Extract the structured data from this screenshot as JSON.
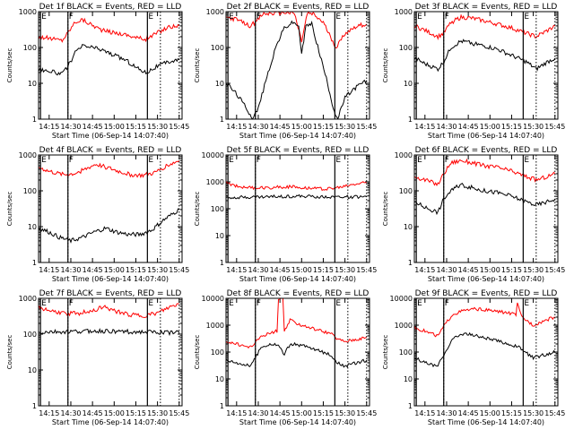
{
  "chart_data": [
    {
      "type": "line",
      "title": "Det 1f BLACK = Events, RED = LLD",
      "xlabel": "Start Time (06-Sep-14 14:07:40)",
      "ylabel": "Counts/sec",
      "yscale": "log",
      "ylim": [
        1,
        1000
      ],
      "xlim": [
        "14:07:40",
        "15:47:00"
      ],
      "x_ticks": [
        "14:15",
        "14:30",
        "14:45",
        "15:00",
        "15:15",
        "15:30",
        "15:45"
      ],
      "y_ticks": [
        "1",
        "10",
        "100",
        "1000"
      ],
      "markers": [
        {
          "time": "14:09",
          "label": "E"
        },
        {
          "time": "14:28",
          "label": "F"
        },
        {
          "time": "15:23",
          "label": "E"
        }
      ],
      "dotted_lines": [
        "14:28",
        "15:32",
        "15:45"
      ],
      "series": [
        {
          "color": "#ff0000",
          "x": [
            "14:08",
            "14:15",
            "14:24",
            "14:28",
            "14:33",
            "14:38",
            "14:45",
            "14:52",
            "15:00",
            "15:08",
            "15:15",
            "15:22",
            "15:30",
            "15:38",
            "15:45"
          ],
          "y": [
            200,
            180,
            160,
            260,
            520,
            600,
            420,
            300,
            260,
            230,
            190,
            170,
            260,
            380,
            400
          ]
        },
        {
          "color": "#000000",
          "x": [
            "14:08",
            "14:15",
            "14:24",
            "14:28",
            "14:33",
            "14:38",
            "14:45",
            "14:52",
            "15:00",
            "15:08",
            "15:15",
            "15:22",
            "15:30",
            "15:38",
            "15:45"
          ],
          "y": [
            25,
            22,
            18,
            30,
            70,
            110,
            100,
            85,
            60,
            45,
            28,
            20,
            30,
            40,
            45
          ]
        }
      ]
    },
    {
      "type": "line",
      "title": "Det 2f BLACK = Events, RED = LLD",
      "xlabel": "Start Time (06-Sep-14 14:07:40)",
      "ylabel": "Counts/sec",
      "yscale": "log",
      "ylim": [
        1,
        1000
      ],
      "xlim": [
        "14:07:40",
        "15:47:00"
      ],
      "x_ticks": [
        "14:15",
        "14:30",
        "14:45",
        "15:00",
        "15:15",
        "15:30",
        "15:45"
      ],
      "y_ticks": [
        "1",
        "10",
        "100",
        "1000"
      ],
      "markers": [
        {
          "time": "14:09",
          "label": "E"
        },
        {
          "time": "14:28",
          "label": "F"
        },
        {
          "time": "15:23",
          "label": "E"
        }
      ],
      "dotted_lines": [
        "14:28",
        "15:32",
        "15:45"
      ],
      "series": [
        {
          "color": "#ff0000",
          "x": [
            "14:08",
            "14:15",
            "14:24",
            "14:28",
            "14:33",
            "14:40",
            "14:48",
            "14:55",
            "15:00",
            "15:04",
            "15:08",
            "15:15",
            "15:20",
            "15:24",
            "15:30",
            "15:38",
            "15:45"
          ],
          "y": [
            700,
            600,
            400,
            500,
            850,
            900,
            950,
            900,
            150,
            900,
            850,
            500,
            200,
            100,
            250,
            400,
            450
          ]
        },
        {
          "color": "#000000",
          "x": [
            "14:08",
            "14:15",
            "14:22",
            "14:26",
            "14:30",
            "14:36",
            "14:42",
            "14:48",
            "14:54",
            "14:58",
            "15:00",
            "15:03",
            "15:07",
            "15:12",
            "15:18",
            "15:22",
            "15:25",
            "15:30",
            "15:38",
            "15:45"
          ],
          "y": [
            10,
            5,
            2,
            1,
            2,
            15,
            100,
            350,
            500,
            400,
            60,
            400,
            450,
            80,
            10,
            2,
            1,
            4,
            8,
            12
          ]
        }
      ]
    },
    {
      "type": "line",
      "title": "Det 3f BLACK = Events, RED = LLD",
      "xlabel": "Start Time (06-Sep-14 14:07:40)",
      "ylabel": "Counts/sec",
      "yscale": "log",
      "ylim": [
        1,
        1000
      ],
      "xlim": [
        "14:07:40",
        "15:47:00"
      ],
      "x_ticks": [
        "14:15",
        "14:30",
        "14:45",
        "15:00",
        "15:15",
        "15:30",
        "15:45"
      ],
      "y_ticks": [
        "1",
        "10",
        "100",
        "1000"
      ],
      "markers": [
        {
          "time": "14:09",
          "label": "E"
        },
        {
          "time": "14:28",
          "label": "F"
        },
        {
          "time": "15:23",
          "label": "E"
        }
      ],
      "dotted_lines": [
        "14:28",
        "15:32",
        "15:45"
      ],
      "series": [
        {
          "color": "#ff0000",
          "x": [
            "14:08",
            "14:15",
            "14:24",
            "14:28",
            "14:33",
            "14:40",
            "14:48",
            "14:56",
            "15:05",
            "15:15",
            "15:25",
            "15:32",
            "15:40",
            "15:45"
          ],
          "y": [
            400,
            300,
            200,
            250,
            500,
            700,
            650,
            550,
            450,
            350,
            250,
            200,
            300,
            400
          ]
        },
        {
          "color": "#000000",
          "x": [
            "14:08",
            "14:15",
            "14:24",
            "14:28",
            "14:33",
            "14:40",
            "14:48",
            "14:56",
            "15:05",
            "15:15",
            "15:25",
            "15:32",
            "15:40",
            "15:45"
          ],
          "y": [
            50,
            35,
            25,
            40,
            100,
            150,
            130,
            110,
            90,
            60,
            40,
            25,
            40,
            50
          ]
        }
      ]
    },
    {
      "type": "line",
      "title": "Det 4f BLACK = Events, RED = LLD",
      "xlabel": "Start Time (06-Sep-14 14:07:40)",
      "ylabel": "Counts/sec",
      "yscale": "log",
      "ylim": [
        1,
        1000
      ],
      "xlim": [
        "14:07:40",
        "15:47:00"
      ],
      "x_ticks": [
        "14:15",
        "14:30",
        "14:45",
        "15:00",
        "15:15",
        "15:30",
        "15:45"
      ],
      "y_ticks": [
        "1",
        "10",
        "100",
        "1000"
      ],
      "markers": [
        {
          "time": "14:09",
          "label": "E"
        },
        {
          "time": "14:28",
          "label": "F"
        },
        {
          "time": "15:23",
          "label": "E"
        }
      ],
      "dotted_lines": [
        "14:28",
        "15:32",
        "15:45"
      ],
      "series": [
        {
          "color": "#ff0000",
          "x": [
            "14:08",
            "14:15",
            "14:25",
            "14:32",
            "14:40",
            "14:47",
            "14:55",
            "15:03",
            "15:12",
            "15:20",
            "15:28",
            "15:36",
            "15:45"
          ],
          "y": [
            450,
            350,
            280,
            300,
            400,
            550,
            450,
            350,
            280,
            270,
            320,
            500,
            700
          ]
        },
        {
          "color": "#000000",
          "x": [
            "14:08",
            "14:15",
            "14:22",
            "14:30",
            "14:38",
            "14:46",
            "14:54",
            "15:02",
            "15:10",
            "15:18",
            "15:26",
            "15:34",
            "15:45"
          ],
          "y": [
            9,
            7,
            5,
            4,
            5,
            7,
            9,
            7,
            6,
            6,
            8,
            15,
            30
          ]
        }
      ]
    },
    {
      "type": "line",
      "title": "Det 5f BLACK = Events, RED = LLD",
      "xlabel": "Start Time (06-Sep-14 14:07:40)",
      "ylabel": "Counts/sec",
      "yscale": "log",
      "ylim": [
        1,
        10000
      ],
      "xlim": [
        "14:07:40",
        "15:47:00"
      ],
      "x_ticks": [
        "14:15",
        "14:30",
        "14:45",
        "15:00",
        "15:15",
        "15:30",
        "15:45"
      ],
      "y_ticks": [
        "1",
        "10",
        "100",
        "1000",
        "10000"
      ],
      "markers": [
        {
          "time": "14:09",
          "label": "E"
        },
        {
          "time": "14:28",
          "label": "F"
        },
        {
          "time": "15:23",
          "label": "E"
        }
      ],
      "dotted_lines": [
        "14:28",
        "15:32",
        "15:45"
      ],
      "series": [
        {
          "color": "#ff0000",
          "x": [
            "14:08",
            "14:15",
            "14:25",
            "14:35",
            "14:45",
            "14:55",
            "15:05",
            "15:15",
            "15:25",
            "15:35",
            "15:45"
          ],
          "y": [
            900,
            700,
            600,
            600,
            650,
            650,
            600,
            550,
            600,
            800,
            950
          ]
        },
        {
          "color": "#000000",
          "x": [
            "14:08",
            "14:15",
            "14:25",
            "14:35",
            "14:45",
            "14:55",
            "15:05",
            "15:15",
            "15:25",
            "15:35",
            "15:45"
          ],
          "y": [
            270,
            270,
            270,
            275,
            285,
            290,
            285,
            280,
            275,
            275,
            275
          ]
        }
      ]
    },
    {
      "type": "line",
      "title": "Det 6f BLACK = Events, RED = LLD",
      "xlabel": "Start Time (06-Sep-14 14:07:40)",
      "ylabel": "Counts/sec",
      "yscale": "log",
      "ylim": [
        1,
        1000
      ],
      "xlim": [
        "14:07:40",
        "15:47:00"
      ],
      "x_ticks": [
        "14:15",
        "14:30",
        "14:45",
        "15:00",
        "15:15",
        "15:30",
        "15:45"
      ],
      "y_ticks": [
        "1",
        "10",
        "100",
        "1000"
      ],
      "markers": [
        {
          "time": "14:09",
          "label": "E"
        },
        {
          "time": "14:28",
          "label": "F"
        },
        {
          "time": "15:23",
          "label": "E"
        }
      ],
      "dotted_lines": [
        "14:28",
        "15:32",
        "15:45"
      ],
      "series": [
        {
          "color": "#ff0000",
          "x": [
            "14:08",
            "14:15",
            "14:24",
            "14:28",
            "14:33",
            "14:40",
            "14:48",
            "14:56",
            "15:05",
            "15:15",
            "15:25",
            "15:32",
            "15:40",
            "15:45"
          ],
          "y": [
            250,
            200,
            150,
            300,
            600,
            700,
            600,
            500,
            450,
            350,
            250,
            200,
            250,
            300
          ]
        },
        {
          "color": "#000000",
          "x": [
            "14:08",
            "14:15",
            "14:24",
            "14:28",
            "14:33",
            "14:40",
            "14:48",
            "14:56",
            "15:05",
            "15:15",
            "15:25",
            "15:32",
            "15:40",
            "15:45"
          ],
          "y": [
            50,
            35,
            25,
            60,
            100,
            150,
            120,
            100,
            90,
            70,
            50,
            40,
            50,
            60
          ]
        }
      ]
    },
    {
      "type": "line",
      "title": "Det 7f BLACK = Events, RED = LLD",
      "xlabel": "Start Time (06-Sep-14 14:07:40)",
      "ylabel": "Counts/sec",
      "yscale": "log",
      "ylim": [
        1,
        1000
      ],
      "xlim": [
        "14:07:40",
        "15:47:00"
      ],
      "x_ticks": [
        "14:15",
        "14:30",
        "14:45",
        "15:00",
        "15:15",
        "15:30",
        "15:45"
      ],
      "y_ticks": [
        "1",
        "10",
        "100",
        "1000"
      ],
      "markers": [
        {
          "time": "14:09",
          "label": "E"
        },
        {
          "time": "14:28",
          "label": "F"
        },
        {
          "time": "15:23",
          "label": "E"
        }
      ],
      "dotted_lines": [
        "14:28",
        "15:32",
        "15:45"
      ],
      "series": [
        {
          "color": "#ff0000",
          "x": [
            "14:08",
            "14:15",
            "14:25",
            "14:35",
            "14:45",
            "14:52",
            "15:00",
            "15:10",
            "15:20",
            "15:30",
            "15:38",
            "15:45"
          ],
          "y": [
            550,
            450,
            380,
            380,
            450,
            580,
            450,
            350,
            320,
            380,
            550,
            700
          ]
        },
        {
          "color": "#000000",
          "x": [
            "14:08",
            "14:15",
            "14:25",
            "14:35",
            "14:45",
            "14:55",
            "15:05",
            "15:15",
            "15:25",
            "15:35",
            "15:45"
          ],
          "y": [
            110,
            115,
            115,
            118,
            122,
            120,
            118,
            115,
            112,
            110,
            110
          ]
        }
      ]
    },
    {
      "type": "line",
      "title": "Det 8f BLACK = Events, RED = LLD",
      "xlabel": "Start Time (06-Sep-14 14:07:40)",
      "ylabel": "Counts/sec",
      "yscale": "log",
      "ylim": [
        1,
        10000
      ],
      "xlim": [
        "14:07:40",
        "15:47:00"
      ],
      "x_ticks": [
        "14:15",
        "14:30",
        "14:45",
        "15:00",
        "15:15",
        "15:30",
        "15:45"
      ],
      "y_ticks": [
        "1",
        "10",
        "100",
        "1000",
        "10000"
      ],
      "markers": [
        {
          "time": "14:09",
          "label": "E"
        },
        {
          "time": "14:28",
          "label": "F"
        },
        {
          "time": "15:23",
          "label": "E"
        }
      ],
      "dotted_lines": [
        "14:28",
        "15:32",
        "15:45"
      ],
      "series": [
        {
          "color": "#ff0000",
          "x": [
            "14:08",
            "14:15",
            "14:24",
            "14:28",
            "14:32",
            "14:38",
            "14:43",
            "14:44",
            "14:47",
            "14:48",
            "14:52",
            "15:00",
            "15:10",
            "15:20",
            "15:25",
            "15:30",
            "15:38",
            "15:45"
          ],
          "y": [
            250,
            200,
            150,
            220,
            400,
            500,
            600,
            9000,
            9000,
            600,
            1500,
            1000,
            700,
            500,
            300,
            250,
            300,
            350
          ]
        },
        {
          "color": "#000000",
          "x": [
            "14:08",
            "14:15",
            "14:24",
            "14:28",
            "14:32",
            "14:38",
            "14:44",
            "14:48",
            "14:52",
            "15:00",
            "15:10",
            "15:20",
            "15:25",
            "15:30",
            "15:38",
            "15:45"
          ],
          "y": [
            50,
            40,
            30,
            60,
            150,
            200,
            180,
            80,
            200,
            180,
            120,
            80,
            40,
            30,
            40,
            50
          ]
        }
      ]
    },
    {
      "type": "line",
      "title": "Det 9f BLACK = Events, RED = LLD",
      "xlabel": "Start Time (06-Sep-14 14:07:40)",
      "ylabel": "Counts/sec",
      "yscale": "log",
      "ylim": [
        1,
        10000
      ],
      "xlim": [
        "14:07:40",
        "15:47:00"
      ],
      "x_ticks": [
        "14:15",
        "14:30",
        "14:45",
        "15:00",
        "15:15",
        "15:30",
        "15:45"
      ],
      "y_ticks": [
        "1",
        "10",
        "100",
        "1000",
        "10000"
      ],
      "markers": [
        {
          "time": "14:09",
          "label": "E"
        },
        {
          "time": "14:28",
          "label": "F"
        },
        {
          "time": "15:23",
          "label": "E"
        }
      ],
      "dotted_lines": [
        "14:28",
        "15:32",
        "15:45"
      ],
      "series": [
        {
          "color": "#ff0000",
          "x": [
            "14:08",
            "14:15",
            "14:24",
            "14:28",
            "14:34",
            "14:42",
            "14:50",
            "15:00",
            "15:10",
            "15:18",
            "15:19",
            "15:22",
            "15:30",
            "15:38",
            "15:45"
          ],
          "y": [
            800,
            600,
            400,
            900,
            2500,
            3500,
            4000,
            3500,
            3000,
            2500,
            6000,
            2000,
            1000,
            1500,
            2000
          ]
        },
        {
          "color": "#000000",
          "x": [
            "14:08",
            "14:15",
            "14:24",
            "14:28",
            "14:34",
            "14:42",
            "14:50",
            "15:00",
            "15:10",
            "15:20",
            "15:30",
            "15:38",
            "15:45"
          ],
          "y": [
            60,
            40,
            30,
            80,
            300,
            500,
            400,
            300,
            220,
            150,
            60,
            80,
            100
          ]
        }
      ]
    }
  ]
}
